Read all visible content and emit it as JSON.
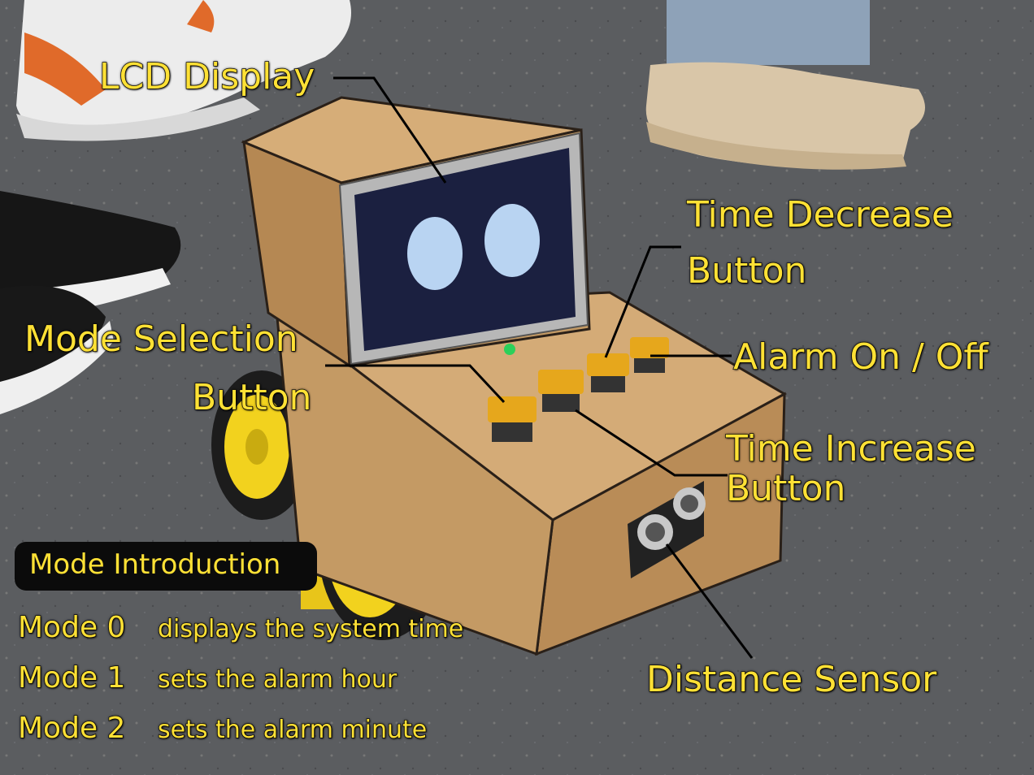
{
  "callouts": {
    "lcd_display": "LCD Display",
    "time_decrease": [
      "Time Decrease",
      "Button"
    ],
    "mode_selection": [
      "Mode Selection",
      "Button"
    ],
    "alarm_toggle": "Alarm On / Off",
    "time_increase": [
      "Time Increase",
      "Button"
    ],
    "distance_sensor": "Distance Sensor"
  },
  "mode_intro": {
    "title": "Mode Introduction",
    "modes": [
      {
        "name": "Mode 0",
        "desc": "displays the system time"
      },
      {
        "name": "Mode 1",
        "desc": "sets the alarm hour"
      },
      {
        "name": "Mode 2",
        "desc": "sets the alarm minute"
      }
    ]
  },
  "colors": {
    "label": "#ffe135",
    "cardboard": "#c9a16c",
    "button": "#e6a71c",
    "wheel": "#f2d21e",
    "tire": "#1c1c1c",
    "screen": "#1b2040",
    "eye": "#b9d4f2",
    "floor": "#5b5d60"
  }
}
